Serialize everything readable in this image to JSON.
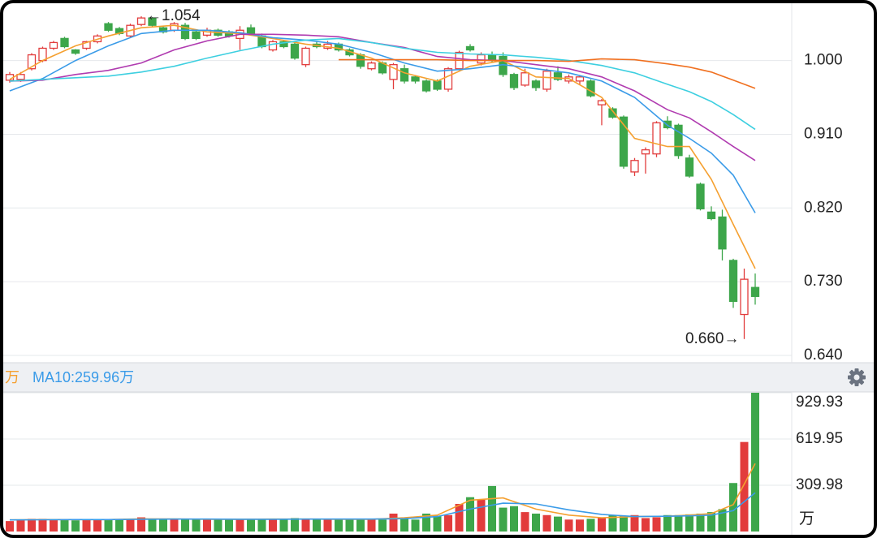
{
  "chart_data": [
    {
      "type": "candlestick",
      "up_color": "#e23c3c",
      "down_color": "#3da64a",
      "ylim": [
        0.64,
        1.066
      ],
      "yticks": [
        {
          "value": 0.64,
          "label": "0.640"
        },
        {
          "value": 0.73,
          "label": "0.730"
        },
        {
          "value": 0.82,
          "label": "0.820"
        },
        {
          "value": 0.91,
          "label": "0.910"
        },
        {
          "value": 1.0,
          "label": "1.000"
        }
      ],
      "grid": true,
      "ohlc": [
        [
          0.976,
          0.986,
          0.973,
          0.983
        ],
        [
          0.977,
          0.986,
          0.974,
          0.983
        ],
        [
          0.99,
          1.009,
          0.988,
          1.007
        ],
        [
          1.0,
          1.017,
          0.998,
          1.015
        ],
        [
          1.015,
          1.024,
          1.013,
          1.022
        ],
        [
          1.027,
          1.029,
          1.015,
          1.017
        ],
        [
          1.013,
          1.014,
          1.007,
          1.009
        ],
        [
          1.015,
          1.024,
          1.013,
          1.023
        ],
        [
          1.023,
          1.032,
          1.021,
          1.03
        ],
        [
          1.045,
          1.047,
          1.035,
          1.037
        ],
        [
          1.039,
          1.041,
          1.031,
          1.033
        ],
        [
          1.03,
          1.045,
          1.028,
          1.043
        ],
        [
          1.044,
          1.054,
          1.042,
          1.052
        ],
        [
          1.052,
          1.053,
          1.041,
          1.043
        ],
        [
          1.04,
          1.042,
          1.033,
          1.035
        ],
        [
          1.037,
          1.047,
          1.035,
          1.045
        ],
        [
          1.043,
          1.046,
          1.025,
          1.027
        ],
        [
          1.035,
          1.037,
          1.025,
          1.027
        ],
        [
          1.031,
          1.04,
          1.029,
          1.037
        ],
        [
          1.037,
          1.039,
          1.029,
          1.031
        ],
        [
          1.035,
          1.037,
          1.028,
          1.03
        ],
        [
          1.027,
          1.042,
          1.013,
          1.037
        ],
        [
          1.04,
          1.044,
          1.031,
          1.033
        ],
        [
          1.03,
          1.033,
          1.015,
          1.017
        ],
        [
          1.013,
          1.025,
          1.011,
          1.023
        ],
        [
          1.023,
          1.025,
          1.015,
          1.017
        ],
        [
          1.02,
          1.022,
          1.001,
          1.003
        ],
        [
          0.995,
          1.017,
          0.992,
          1.015
        ],
        [
          1.02,
          1.024,
          1.015,
          1.017
        ],
        [
          1.015,
          1.024,
          1.013,
          1.02
        ],
        [
          1.02,
          1.022,
          1.011,
          1.013
        ],
        [
          1.013,
          1.015,
          1.005,
          1.007
        ],
        [
          1.007,
          1.009,
          0.99,
          0.993
        ],
        [
          0.99,
          0.999,
          0.988,
          0.997
        ],
        [
          0.997,
          0.999,
          0.983,
          0.985
        ],
        [
          0.977,
          0.997,
          0.965,
          0.995
        ],
        [
          0.99,
          0.995,
          0.972,
          0.975
        ],
        [
          0.98,
          0.982,
          0.972,
          0.975
        ],
        [
          0.975,
          0.977,
          0.961,
          0.963
        ],
        [
          0.975,
          0.977,
          0.963,
          0.965
        ],
        [
          0.965,
          0.992,
          0.962,
          0.99
        ],
        [
          0.99,
          1.012,
          0.988,
          1.01
        ],
        [
          1.017,
          1.02,
          1.011,
          1.013
        ],
        [
          0.997,
          1.01,
          0.994,
          1.007
        ],
        [
          1.007,
          1.011,
          0.998,
          1.0
        ],
        [
          1.005,
          1.01,
          0.98,
          0.983
        ],
        [
          0.983,
          0.985,
          0.964,
          0.967
        ],
        [
          0.97,
          0.99,
          0.968,
          0.985
        ],
        [
          0.975,
          0.977,
          0.963,
          0.967
        ],
        [
          0.965,
          0.99,
          0.962,
          0.987
        ],
        [
          0.985,
          0.993,
          0.975,
          0.977
        ],
        [
          0.975,
          0.983,
          0.972,
          0.98
        ],
        [
          0.975,
          0.982,
          0.97,
          0.98
        ],
        [
          0.975,
          0.977,
          0.955,
          0.957
        ],
        [
          0.946,
          0.953,
          0.921,
          0.951
        ],
        [
          0.941,
          0.943,
          0.929,
          0.931
        ],
        [
          0.931,
          0.933,
          0.868,
          0.871
        ],
        [
          0.864,
          0.881,
          0.859,
          0.878
        ],
        [
          0.886,
          0.894,
          0.862,
          0.891
        ],
        [
          0.886,
          0.926,
          0.882,
          0.924
        ],
        [
          0.926,
          0.932,
          0.916,
          0.918
        ],
        [
          0.921,
          0.923,
          0.88,
          0.884
        ],
        [
          0.881,
          0.885,
          0.857,
          0.859
        ],
        [
          0.849,
          0.851,
          0.817,
          0.819
        ],
        [
          0.815,
          0.822,
          0.805,
          0.807
        ],
        [
          0.809,
          0.818,
          0.756,
          0.77
        ],
        [
          0.756,
          0.758,
          0.698,
          0.706
        ],
        [
          0.69,
          0.746,
          0.66,
          0.733
        ],
        [
          0.723,
          0.74,
          0.702,
          0.712
        ]
      ],
      "series": [
        {
          "color": "#f5a030",
          "x": [
            0,
            3,
            6,
            9,
            12,
            15,
            18,
            21,
            24,
            27,
            30,
            33,
            36,
            39,
            42,
            45,
            48,
            51,
            54,
            57,
            60,
            62,
            64,
            66,
            68
          ],
          "values": [
            0.977,
            1.0,
            1.018,
            1.03,
            1.04,
            1.043,
            1.035,
            1.033,
            1.027,
            1.02,
            1.015,
            1.003,
            0.985,
            0.975,
            0.993,
            1.0,
            0.98,
            0.978,
            0.955,
            0.905,
            0.895,
            0.895,
            0.855,
            0.8,
            0.746
          ]
        },
        {
          "color": "#3a9be8",
          "x": [
            0,
            3,
            6,
            9,
            12,
            15,
            18,
            21,
            24,
            27,
            30,
            33,
            36,
            39,
            42,
            45,
            48,
            51,
            54,
            57,
            60,
            62,
            64,
            66,
            68
          ],
          "values": [
            0.963,
            0.978,
            1.0,
            1.018,
            1.033,
            1.037,
            1.037,
            1.034,
            1.028,
            1.025,
            1.02,
            1.01,
            0.997,
            0.987,
            0.99,
            0.995,
            0.99,
            0.985,
            0.975,
            0.955,
            0.921,
            0.905,
            0.887,
            0.86,
            0.814
          ]
        },
        {
          "color": "#b03bb0",
          "x": [
            0,
            3,
            6,
            9,
            12,
            15,
            18,
            21,
            24,
            27,
            30,
            33,
            36,
            39,
            42,
            45,
            48,
            51,
            54,
            57,
            60,
            62,
            64,
            66,
            68
          ],
          "values": [
            0.975,
            0.976,
            0.983,
            0.988,
            0.997,
            1.013,
            1.024,
            1.032,
            1.032,
            1.031,
            1.029,
            1.022,
            1.016,
            1.005,
            1.001,
            1.0,
            0.995,
            0.99,
            0.98,
            0.963,
            0.94,
            0.93,
            0.913,
            0.895,
            0.878
          ]
        },
        {
          "color": "#3dcfe0",
          "x": [
            0,
            3,
            6,
            9,
            12,
            15,
            18,
            21,
            24,
            27,
            30,
            33,
            36,
            39,
            42,
            45,
            48,
            51,
            54,
            57,
            60,
            62,
            64,
            66,
            68
          ],
          "values": [
            0.975,
            0.977,
            0.979,
            0.981,
            0.986,
            0.993,
            1.003,
            1.012,
            1.02,
            1.025,
            1.027,
            1.022,
            1.015,
            1.01,
            1.008,
            1.007,
            1.004,
            1.0,
            0.994,
            0.985,
            0.971,
            0.962,
            0.95,
            0.934,
            0.916
          ]
        },
        {
          "color": "#f07020",
          "x": [
            30,
            33,
            36,
            39,
            42,
            45,
            48,
            51,
            54,
            57,
            60,
            62,
            64,
            66,
            68
          ],
          "values": [
            1.001,
            1.001,
            1.001,
            1.001,
            1.0,
            1.0,
            1.0,
            0.999,
            1.002,
            1.001,
            0.996,
            0.992,
            0.986,
            0.976,
            0.966
          ]
        }
      ],
      "annotations": [
        {
          "label": "←1.054",
          "value": 1.054
        },
        {
          "label": "0.660→",
          "value": 0.66
        }
      ]
    },
    {
      "type": "bar",
      "ylim": [
        0,
        929.93
      ],
      "yticks": [
        309.98,
        619.95,
        929.93
      ],
      "y_unit": "万",
      "grid": true,
      "values": [
        70,
        80,
        85,
        85,
        80,
        80,
        75,
        80,
        80,
        80,
        80,
        85,
        95,
        85,
        80,
        80,
        85,
        80,
        85,
        80,
        80,
        80,
        85,
        80,
        85,
        80,
        90,
        80,
        80,
        85,
        80,
        80,
        85,
        80,
        80,
        120,
        95,
        80,
        120,
        105,
        110,
        185,
        230,
        215,
        305,
        160,
        170,
        130,
        120,
        110,
        100,
        80,
        80,
        85,
        90,
        110,
        105,
        110,
        90,
        95,
        110,
        110,
        115,
        120,
        130,
        150,
        325,
        600,
        929.93
      ],
      "series": [
        {
          "color": "#f5a030",
          "x": [
            0,
            3,
            6,
            9,
            12,
            15,
            18,
            21,
            24,
            27,
            30,
            33,
            36,
            39,
            42,
            45,
            48,
            51,
            54,
            57,
            60,
            62,
            64,
            66,
            68
          ],
          "values": [
            78,
            80,
            80,
            80,
            85,
            84,
            82,
            82,
            83,
            83,
            82,
            82,
            92,
            110,
            210,
            225,
            150,
            110,
            92,
            100,
            102,
            110,
            120,
            180,
            455
          ]
        },
        {
          "color": "#3a9be8",
          "x": [
            0,
            3,
            6,
            9,
            12,
            15,
            18,
            21,
            24,
            27,
            30,
            33,
            36,
            39,
            42,
            45,
            48,
            51,
            54,
            57,
            60,
            62,
            64,
            66,
            68
          ],
          "values": [
            78,
            79,
            80,
            80,
            82,
            83,
            83,
            82,
            82,
            83,
            83,
            83,
            86,
            100,
            150,
            190,
            185,
            145,
            115,
            100,
            102,
            105,
            110,
            140,
            259.96
          ]
        }
      ],
      "legend": [
        {
          "text": "万",
          "color": "#f5a030"
        },
        {
          "text": "MA10:259.96万",
          "color": "#3a9be8"
        }
      ]
    }
  ]
}
